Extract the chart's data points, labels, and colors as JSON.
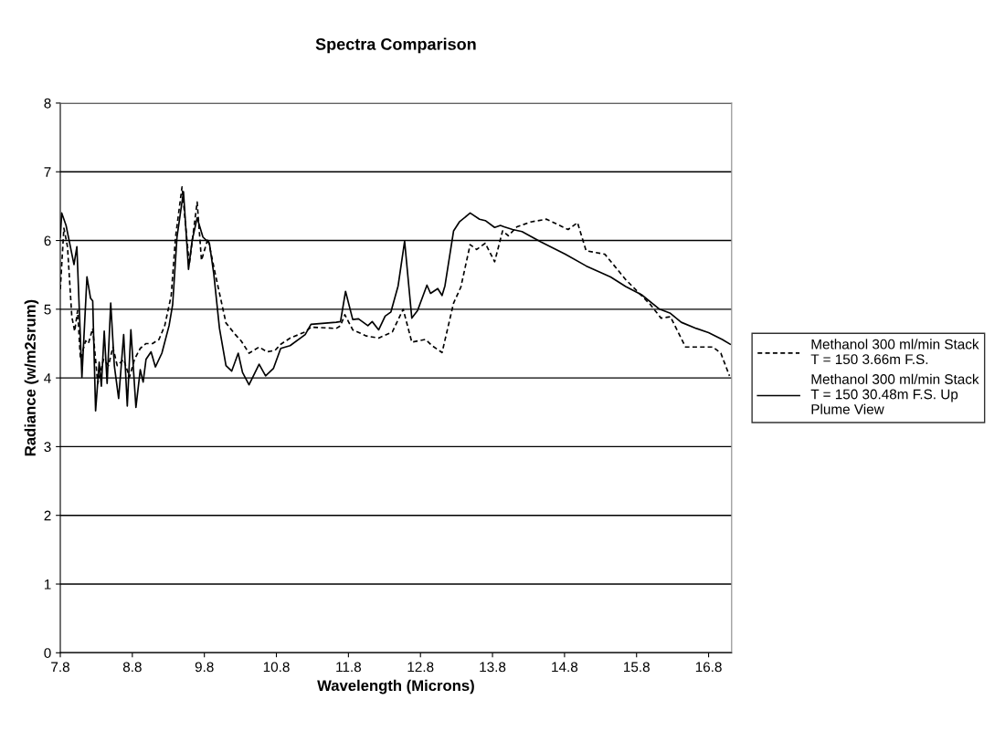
{
  "chart_data": {
    "type": "line",
    "title": "Spectra Comparison",
    "xlabel": "Wavelength (Microns)",
    "ylabel": "Radiance (w/m2srum)",
    "xlim": [
      7.8,
      17.12
    ],
    "xticks": [
      {
        "value": 7.8,
        "label": "7.8"
      },
      {
        "value": 8.8,
        "label": "8.8"
      },
      {
        "value": 9.8,
        "label": "9.8"
      },
      {
        "value": 10.8,
        "label": "10.8"
      },
      {
        "value": 11.8,
        "label": "11.8"
      },
      {
        "value": 12.8,
        "label": "12.8"
      },
      {
        "value": 13.8,
        "label": "13.8"
      },
      {
        "value": 14.8,
        "label": "14.8"
      },
      {
        "value": 15.8,
        "label": "15.8"
      },
      {
        "value": 16.8,
        "label": "16.8"
      }
    ],
    "ylim": [
      0,
      8
    ],
    "yticks": [
      0,
      1,
      2,
      3,
      4,
      5,
      6,
      7,
      8
    ],
    "grid": "y",
    "legend": "right",
    "marker": "none",
    "series": [
      {
        "name": "Methanol 300 ml/min Stack\nT = 150 3.66m F.S.",
        "color": "#000000",
        "line_style": "dashed",
        "x": [
          7.8,
          7.85,
          7.9,
          7.96,
          8.0,
          8.04,
          8.08,
          8.15,
          8.19,
          8.25,
          8.32,
          8.4,
          8.47,
          8.53,
          8.59,
          8.68,
          8.76,
          8.83,
          8.91,
          8.99,
          9.08,
          9.17,
          9.25,
          9.34,
          9.4,
          9.49,
          9.59,
          9.7,
          9.76,
          9.85,
          9.95,
          10.1,
          10.23,
          10.31,
          10.42,
          10.56,
          10.67,
          10.78,
          10.86,
          10.99,
          11.2,
          11.28,
          11.63,
          11.69,
          11.75,
          11.86,
          12.05,
          12.22,
          12.41,
          12.56,
          12.68,
          12.87,
          12.96,
          13.1,
          13.26,
          13.36,
          13.49,
          13.58,
          13.7,
          13.83,
          13.94,
          14.02,
          14.14,
          14.33,
          14.55,
          14.85,
          14.98,
          15.1,
          15.36,
          15.65,
          15.99,
          16.14,
          16.27,
          16.48,
          16.86,
          16.97,
          17.09
        ],
        "values": [
          5.29,
          6.18,
          5.91,
          4.89,
          4.68,
          4.98,
          4.27,
          4.54,
          4.5,
          4.72,
          3.92,
          4.27,
          4.18,
          4.45,
          4.18,
          4.27,
          4.01,
          4.27,
          4.43,
          4.5,
          4.5,
          4.56,
          4.76,
          5.2,
          6.05,
          6.78,
          5.65,
          6.56,
          5.71,
          6.03,
          5.52,
          4.8,
          4.63,
          4.54,
          4.36,
          4.45,
          4.38,
          4.4,
          4.49,
          4.58,
          4.67,
          4.74,
          4.72,
          4.76,
          4.92,
          4.7,
          4.61,
          4.58,
          4.67,
          5.0,
          4.52,
          4.56,
          4.47,
          4.37,
          5.09,
          5.32,
          5.94,
          5.87,
          5.96,
          5.69,
          6.14,
          6.07,
          6.2,
          6.27,
          6.31,
          6.16,
          6.26,
          5.85,
          5.8,
          5.43,
          5.07,
          4.87,
          4.89,
          4.45,
          4.45,
          4.36,
          4.03
        ]
      },
      {
        "name": "Methanol 300 ml/min Stack\nT = 150 30.48m F.S. Up\nPlume View",
        "color": "#000000",
        "line_style": "solid",
        "x": [
          7.8,
          7.82,
          7.88,
          7.99,
          8.03,
          8.1,
          8.17,
          8.22,
          8.25,
          8.29,
          8.34,
          8.37,
          8.41,
          8.45,
          8.5,
          8.55,
          8.61,
          8.68,
          8.73,
          8.78,
          8.85,
          8.91,
          8.95,
          8.99,
          9.06,
          9.12,
          9.21,
          9.31,
          9.36,
          9.42,
          9.51,
          9.58,
          9.63,
          9.7,
          9.78,
          9.87,
          9.93,
          10.01,
          10.1,
          10.18,
          10.27,
          10.33,
          10.42,
          10.56,
          10.65,
          10.76,
          10.86,
          10.99,
          11.2,
          11.28,
          11.63,
          11.69,
          11.76,
          11.86,
          11.94,
          12.07,
          12.13,
          12.22,
          12.31,
          12.39,
          12.49,
          12.58,
          12.68,
          12.76,
          12.89,
          12.94,
          13.04,
          13.1,
          13.14,
          13.26,
          13.34,
          13.49,
          13.62,
          13.7,
          13.83,
          13.91,
          13.96,
          14.08,
          14.21,
          14.47,
          14.81,
          15.1,
          15.44,
          15.65,
          15.87,
          16.12,
          16.27,
          16.42,
          16.63,
          16.8,
          16.99,
          17.1
        ],
        "values": [
          6.05,
          6.4,
          6.22,
          5.65,
          5.91,
          4.01,
          5.47,
          5.16,
          5.12,
          3.52,
          4.23,
          3.88,
          4.68,
          3.92,
          5.09,
          4.18,
          3.7,
          4.63,
          3.59,
          4.7,
          3.57,
          4.12,
          3.94,
          4.27,
          4.38,
          4.16,
          4.36,
          4.76,
          5.07,
          6.05,
          6.71,
          5.58,
          6.0,
          6.33,
          6.05,
          5.96,
          5.52,
          4.72,
          4.18,
          4.1,
          4.36,
          4.08,
          3.9,
          4.2,
          4.03,
          4.14,
          4.43,
          4.47,
          4.63,
          4.78,
          4.81,
          4.82,
          5.26,
          4.85,
          4.86,
          4.76,
          4.82,
          4.7,
          4.9,
          4.96,
          5.34,
          5.99,
          4.87,
          4.98,
          5.35,
          5.23,
          5.3,
          5.2,
          5.34,
          6.14,
          6.27,
          6.4,
          6.31,
          6.29,
          6.19,
          6.22,
          6.2,
          6.16,
          6.13,
          5.98,
          5.8,
          5.63,
          5.47,
          5.33,
          5.21,
          5.0,
          4.94,
          4.81,
          4.72,
          4.66,
          4.56,
          4.49
        ]
      }
    ]
  }
}
